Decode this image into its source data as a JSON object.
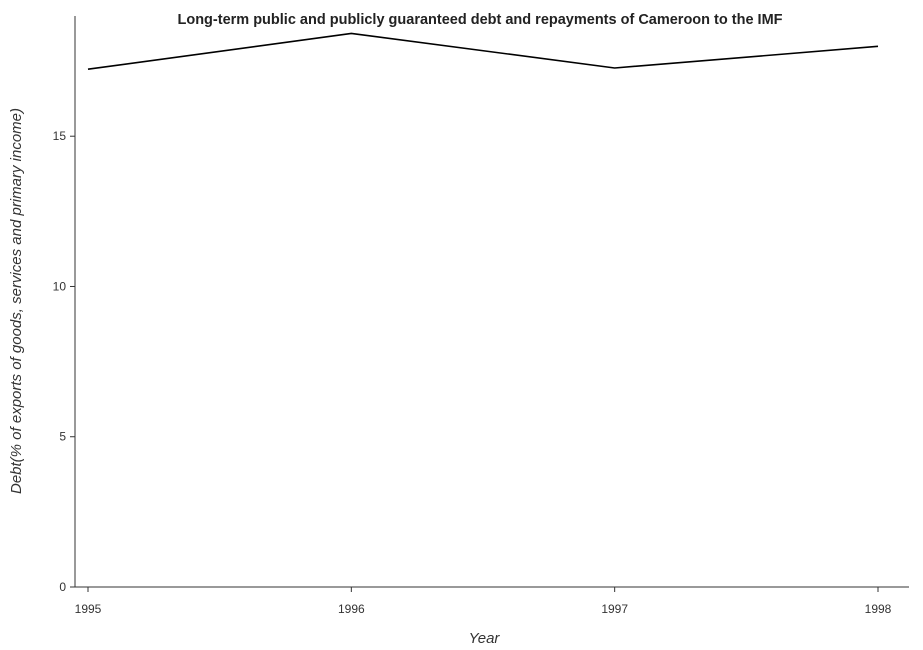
{
  "chart_data": {
    "type": "line",
    "title": "Long-term public and publicly guaranteed debt and repayments of Cameroon to the IMF",
    "xlabel": "Year",
    "ylabel": "Debt(% of exports of goods, services and primary income)",
    "categories": [
      "1995",
      "1996",
      "1997",
      "1998"
    ],
    "series": [
      {
        "values": [
          17.23,
          18.42,
          17.27,
          17.99
        ],
        "color": "#000000"
      }
    ],
    "ylim": [
      0,
      19
    ],
    "yticks": [
      0,
      5,
      10,
      15
    ],
    "ytick_labels": [
      "0",
      "5",
      "10",
      "15"
    ],
    "grid": false,
    "legend": "none"
  }
}
